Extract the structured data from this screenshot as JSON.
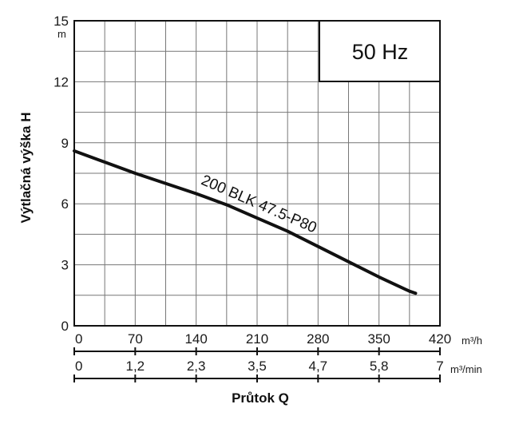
{
  "chart_data": {
    "type": "line",
    "frequency_label": "50 Hz",
    "ylabel": "Výtlačná výška H",
    "y_unit": "m",
    "ylim": [
      0,
      15
    ],
    "y_ticks": [
      "0",
      "3",
      "6",
      "9",
      "12",
      "15"
    ],
    "xlabel": "Průtok Q",
    "x_axis_primary": {
      "unit": "m³/h",
      "range": [
        0,
        420
      ],
      "ticks": [
        "0",
        "70",
        "140",
        "210",
        "280",
        "350",
        "420"
      ]
    },
    "x_axis_secondary": {
      "unit": "m³/min",
      "range": [
        0,
        7
      ],
      "ticks": [
        "0",
        "1,2",
        "2,3",
        "3,5",
        "4,7",
        "5,8",
        "7"
      ]
    },
    "grid": true,
    "series": [
      {
        "name": "200 BLK 47.5-P80",
        "color": "#111111",
        "x": [
          0,
          35,
          70,
          105,
          140,
          175,
          210,
          245,
          280,
          315,
          350,
          385,
          392
        ],
        "y": [
          8.6,
          8.05,
          7.5,
          7.0,
          6.5,
          5.95,
          5.3,
          4.65,
          3.9,
          3.15,
          2.4,
          1.7,
          1.6
        ]
      }
    ]
  }
}
